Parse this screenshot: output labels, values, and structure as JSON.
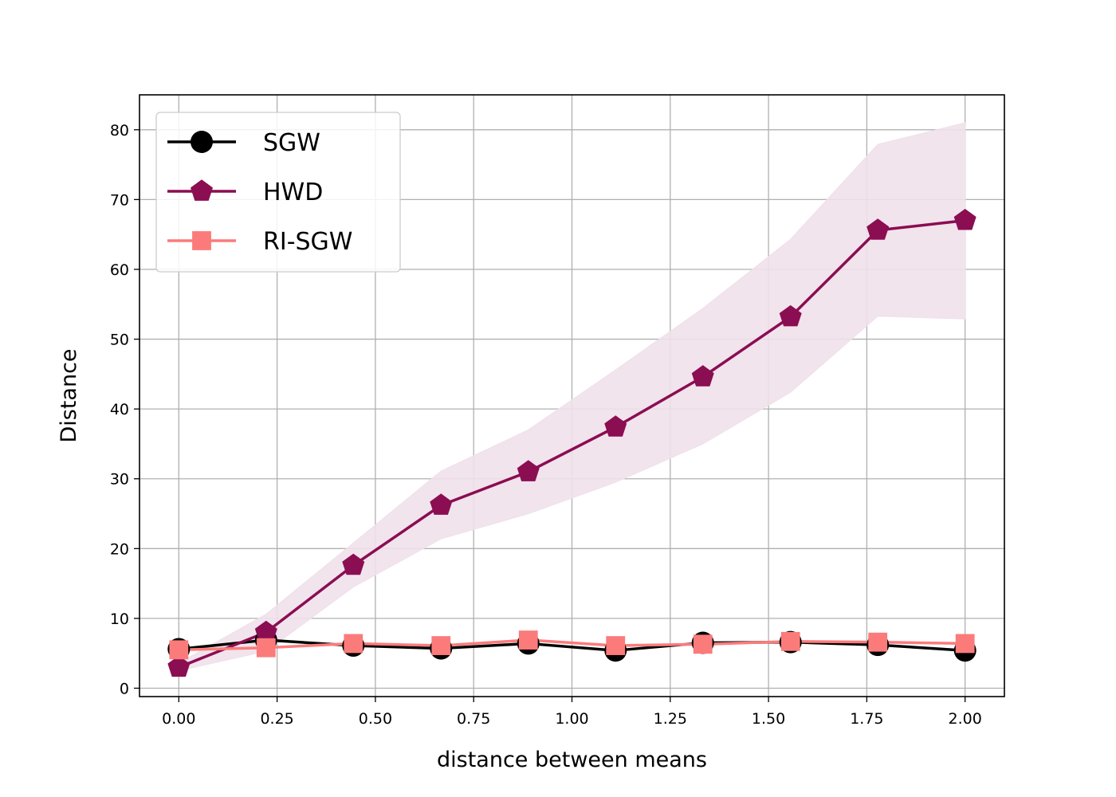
{
  "chart_data": {
    "type": "line",
    "xlabel": "distance between means",
    "ylabel": "Distance",
    "xlim": [
      -0.1,
      2.1
    ],
    "ylim": [
      -1.2,
      85
    ],
    "xticks": [
      0.0,
      0.25,
      0.5,
      0.75,
      1.0,
      1.25,
      1.5,
      1.75,
      2.0
    ],
    "xtick_labels": [
      "0.00",
      "0.25",
      "0.50",
      "0.75",
      "1.00",
      "1.25",
      "1.50",
      "1.75",
      "2.00"
    ],
    "yticks": [
      0,
      10,
      20,
      30,
      40,
      50,
      60,
      70,
      80
    ],
    "ytick_labels": [
      "0",
      "10",
      "20",
      "30",
      "40",
      "50",
      "60",
      "70",
      "80"
    ],
    "grid": true,
    "legend_position": "top-left",
    "x": [
      0.0,
      0.222,
      0.444,
      0.667,
      0.889,
      1.111,
      1.333,
      1.556,
      1.778,
      2.0
    ],
    "series": [
      {
        "name": "SGW",
        "color": "#000000",
        "marker": "circle",
        "values": [
          5.6,
          6.9,
          6.1,
          5.7,
          6.4,
          5.4,
          6.5,
          6.6,
          6.2,
          5.4
        ]
      },
      {
        "name": "HWD",
        "color": "#8b0d52",
        "marker": "pentagon",
        "values": [
          3.0,
          8.0,
          17.6,
          26.2,
          31.0,
          37.4,
          44.6,
          53.2,
          65.6,
          67.0
        ],
        "band_upper": [
          3.6,
          10.6,
          20.8,
          31.1,
          37.0,
          45.6,
          54.4,
          64.3,
          77.9,
          81.0
        ],
        "band_lower": [
          2.5,
          5.3,
          14.5,
          21.4,
          25.0,
          29.5,
          35.0,
          42.4,
          53.3,
          52.9
        ],
        "band_color": "#f0e1ea"
      },
      {
        "name": "RI-SGW",
        "color": "#fb7b7b",
        "marker": "square",
        "values": [
          5.5,
          5.8,
          6.4,
          6.1,
          6.9,
          6.1,
          6.3,
          6.7,
          6.6,
          6.4
        ]
      }
    ]
  }
}
